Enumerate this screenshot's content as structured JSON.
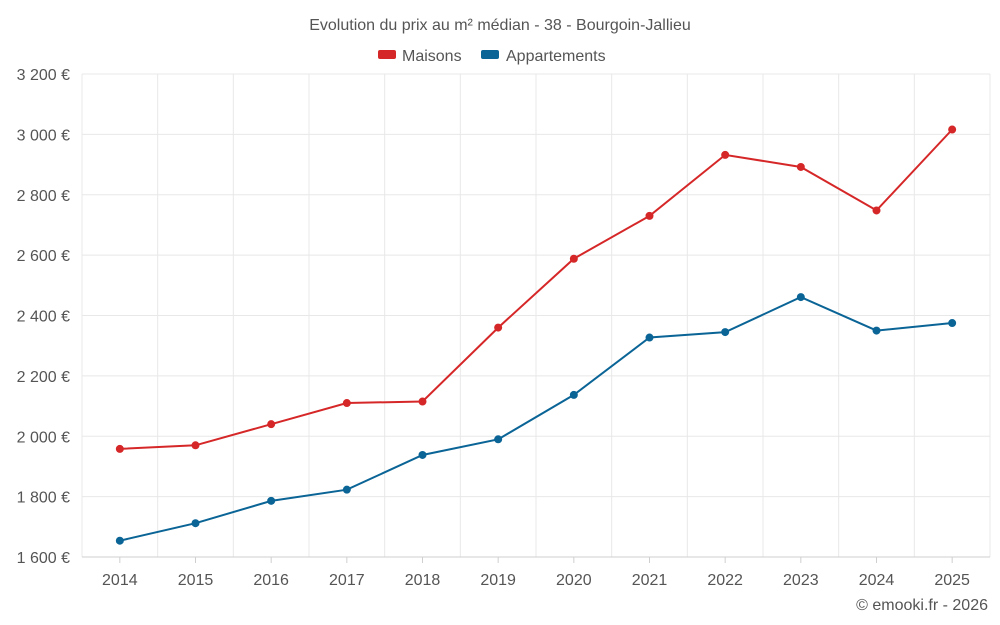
{
  "chart_data": {
    "type": "line",
    "title": "Evolution du prix au m² médian - 38 - Bourgoin-Jallieu",
    "x": [
      "2014",
      "2015",
      "2016",
      "2017",
      "2018",
      "2019",
      "2020",
      "2021",
      "2022",
      "2023",
      "2024",
      "2025"
    ],
    "ylim": [
      1600,
      3200
    ],
    "yticks": [
      1600,
      1800,
      2000,
      2200,
      2400,
      2600,
      2800,
      3000,
      3200
    ],
    "ytick_labels": [
      "1 600 €",
      "1 800 €",
      "2 000 €",
      "2 200 €",
      "2 400 €",
      "2 600 €",
      "2 800 €",
      "3 000 €",
      "3 200 €"
    ],
    "xlabel": "",
    "ylabel": "",
    "grid": true,
    "legend_position": "top-center",
    "series": [
      {
        "name": "Maisons",
        "color": "#d62728",
        "values": [
          1958,
          1970,
          2040,
          2110,
          2115,
          2360,
          2588,
          2730,
          2932,
          2892,
          2748,
          3016
        ]
      },
      {
        "name": "Appartements",
        "color": "#0a6496",
        "values": [
          1654,
          1712,
          1786,
          1823,
          1938,
          1990,
          2137,
          2327,
          2345,
          2461,
          2350,
          2375
        ]
      }
    ]
  },
  "credit": "© emooki.fr - 2026"
}
